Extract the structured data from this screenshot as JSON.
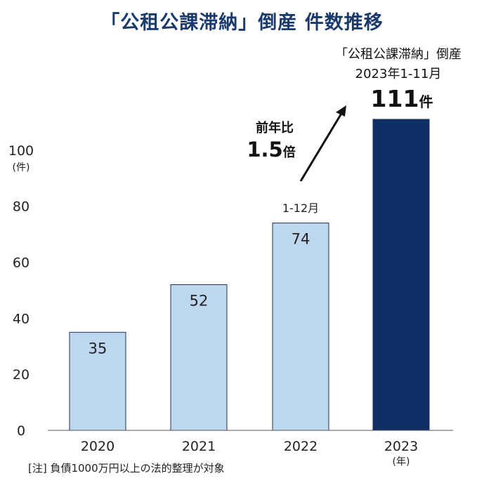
{
  "chart_data": {
    "type": "bar",
    "title": "「公租公課滞納」倒産  件数推移",
    "categories": [
      "2020",
      "2021",
      "2022",
      "2023"
    ],
    "values": [
      35,
      52,
      74,
      111
    ],
    "value_labels": [
      "35",
      "52",
      "74",
      ""
    ],
    "bar_colors": [
      "#bdd7ee",
      "#bdd7ee",
      "#bdd7ee",
      "#0f2f66"
    ],
    "ylim": [
      0,
      111
    ],
    "yticks": [
      0,
      20,
      40,
      60,
      80,
      100
    ],
    "ylabel": "(件)",
    "x_unit": "(年)",
    "period_label_2022": "1-12月",
    "callout": {
      "line1": "「公租公課滞納」倒産",
      "line2": "2023年1-11月",
      "value": "111",
      "unit": "件"
    },
    "growth": {
      "label": "前年比",
      "value": "1.5",
      "unit": "倍"
    },
    "note": "[注] 負債1000万円以上の法的整理が対象"
  }
}
